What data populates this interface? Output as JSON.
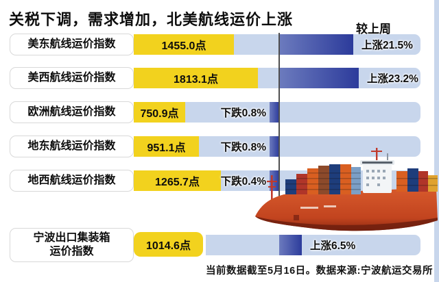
{
  "title": "关税下调，需求增加，北美航线运价上涨",
  "column_header": "较上周",
  "footer": "当前数据截至5月16日。数据来源:宁波航运交易所",
  "colors": {
    "yellow": "#F2D21E",
    "bar_light": "#C8D6EC",
    "bar_dark_start": "#6C7BBE",
    "bar_dark_end": "#2C3B9B",
    "axis": "#4F4F4F",
    "ship_hull": "#CC4B26"
  },
  "chart_data": {
    "type": "bar",
    "unit_suffix": "点",
    "note": "horizontal index bars; dark segment shows week-over-week change vs axis line",
    "rows": [
      {
        "label_lines": [
          "美东航线运价指数"
        ],
        "value": "1455.0",
        "change_pct": 21.5,
        "direction": "up",
        "change_label": "上涨21.5%"
      },
      {
        "label_lines": [
          "美西航线运价指数"
        ],
        "value": "1813.1",
        "change_pct": 23.2,
        "direction": "up",
        "change_label": "上涨23.2%"
      },
      {
        "label_lines": [
          "欧洲航线运价指数"
        ],
        "value": "750.9",
        "change_pct": -0.8,
        "direction": "down",
        "change_label": "下跌0.8%"
      },
      {
        "label_lines": [
          "地东航线运价指数"
        ],
        "value": "951.1",
        "change_pct": -0.8,
        "direction": "down",
        "change_label": "下跌0.8%"
      },
      {
        "label_lines": [
          "地西航线运价指数"
        ],
        "value": "1265.7",
        "change_pct": -0.4,
        "direction": "down",
        "change_label": "下跌0.4%"
      },
      {
        "label_lines": [
          "宁波出口集装箱",
          "运价指数"
        ],
        "value": "1014.6",
        "change_pct": 6.5,
        "direction": "up",
        "change_label": "上涨6.5%"
      }
    ]
  },
  "decor": {
    "ship": "container-ship-illustration"
  }
}
